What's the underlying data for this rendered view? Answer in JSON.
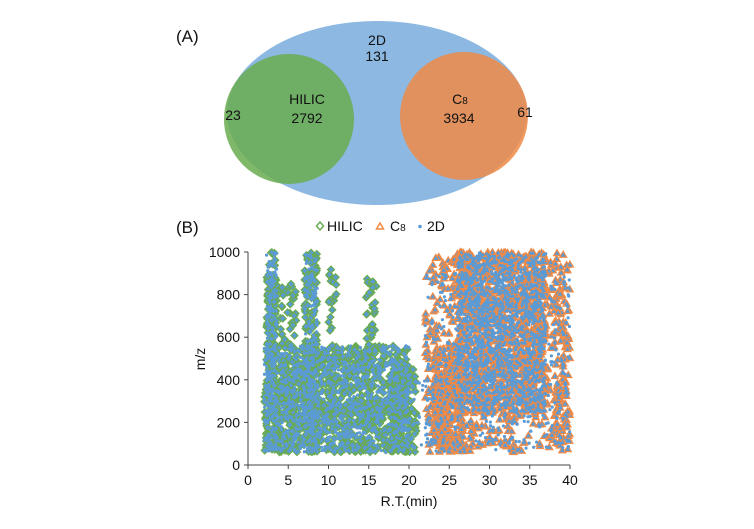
{
  "colors": {
    "hilic": "#6aab4f",
    "c8": "#f08a45",
    "twod": "#5b9bd5",
    "ellipse": "#86b4e0"
  },
  "chart_data": [
    {
      "type": "venn",
      "panel_label": "(A)",
      "sets": [
        {
          "name": "2D",
          "label": "2D",
          "value": 131
        },
        {
          "name": "HILIC",
          "label": "HILIC",
          "value": 2792,
          "outside_value": 23
        },
        {
          "name": "C8",
          "label": "C",
          "subscript": "8",
          "value": 3934,
          "outside_value": 61
        }
      ]
    },
    {
      "type": "scatter",
      "panel_label": "(B)",
      "xlabel": "R.T.(min)",
      "ylabel": "m/z",
      "xlim": [
        0,
        40
      ],
      "ylim": [
        0,
        1000
      ],
      "xticks": [
        0,
        5,
        10,
        15,
        20,
        25,
        30,
        35,
        40
      ],
      "yticks": [
        0,
        200,
        400,
        600,
        800,
        1000
      ],
      "legend": {
        "placement": "top-center",
        "entries": [
          {
            "series": "HILIC",
            "label": "HILIC",
            "marker": "diamond"
          },
          {
            "series": "C8",
            "label": "C",
            "subscript": "8",
            "marker": "triangle"
          },
          {
            "series": "2D",
            "label": "2D",
            "marker": "dot"
          }
        ]
      },
      "series": [
        {
          "name": "HILIC",
          "clusters": [
            {
              "x": [
                2,
                20
              ],
              "y": [
                60,
                560
              ],
              "n": 900
            },
            {
              "x": [
                2.3,
                3.6
              ],
              "y": [
                60,
                1000
              ],
              "n": 160
            },
            {
              "x": [
                4,
                6
              ],
              "y": [
                60,
                850
              ],
              "n": 90
            },
            {
              "x": [
                7,
                8.6
              ],
              "y": [
                60,
                1000
              ],
              "n": 170
            },
            {
              "x": [
                10,
                11
              ],
              "y": [
                200,
                950
              ],
              "n": 40
            },
            {
              "x": [
                14.5,
                16
              ],
              "y": [
                200,
                880
              ],
              "n": 60
            },
            {
              "x": [
                17.5,
                21
              ],
              "y": [
                60,
                450
              ],
              "n": 120
            }
          ]
        },
        {
          "name": "C8",
          "clusters": [
            {
              "x": [
                22,
                40
              ],
              "y": [
                60,
                1000
              ],
              "n": 700
            },
            {
              "x": [
                26,
                37
              ],
              "y": [
                250,
                1000
              ],
              "n": 900
            },
            {
              "x": [
                23,
                27
              ],
              "y": [
                60,
                550
              ],
              "n": 250
            },
            {
              "x": [
                38,
                40
              ],
              "y": [
                60,
                950
              ],
              "n": 80
            }
          ]
        },
        {
          "name": "2D",
          "clusters": [
            {
              "x": [
                2,
                20
              ],
              "y": [
                60,
                560
              ],
              "n": 900
            },
            {
              "x": [
                2.3,
                3.6
              ],
              "y": [
                60,
                1000
              ],
              "n": 140
            },
            {
              "x": [
                7,
                8.6
              ],
              "y": [
                60,
                1000
              ],
              "n": 140
            },
            {
              "x": [
                26,
                37
              ],
              "y": [
                250,
                1000
              ],
              "n": 1100
            },
            {
              "x": [
                22,
                40
              ],
              "y": [
                60,
                900
              ],
              "n": 500
            },
            {
              "x": [
                20,
                23
              ],
              "y": [
                60,
                400
              ],
              "n": 30
            }
          ]
        }
      ]
    }
  ]
}
